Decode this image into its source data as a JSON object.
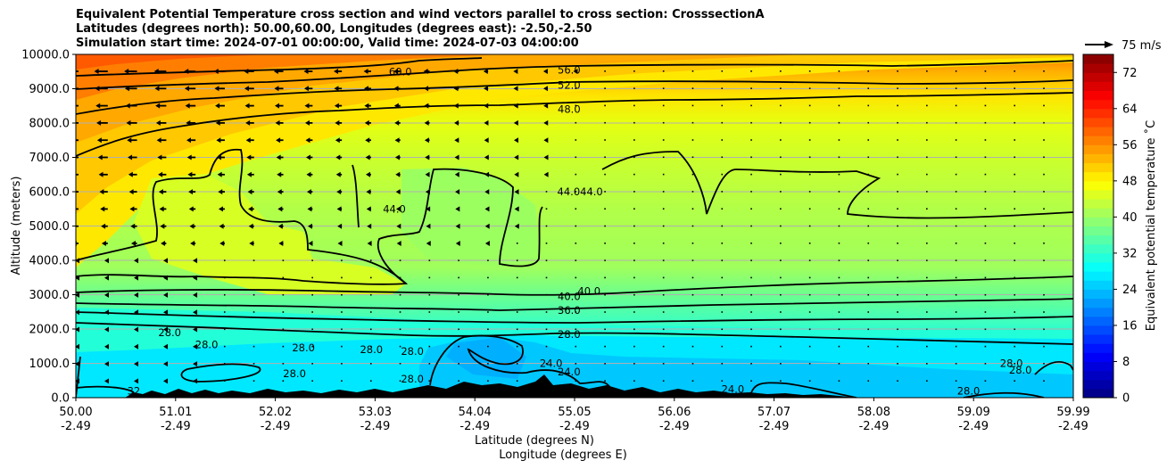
{
  "figure": {
    "title_lines": [
      "Equivalent Potential Temperature cross section and wind vectors parallel to cross section: CrosssectionA",
      "Latitudes (degrees north): 50.00,60.00, Longitudes (degrees east): -2.50,-2.50",
      "Simulation start time: 2024-07-01 00:00:00, Valid time: 2024-07-03 04:00:00"
    ],
    "quiver_key_label": "75 m/s"
  },
  "chart_data": {
    "type": "heatmap",
    "subtype": "filled-contour cross section with contour lines and wind vectors",
    "ylabel": "Altitude (meters)",
    "xlabel_lines": [
      "Latitude (degrees N)",
      "Longitude (degrees E)"
    ],
    "x_tick_labels": [
      [
        "50.00",
        "-2.49"
      ],
      [
        "51.01",
        "-2.49"
      ],
      [
        "52.02",
        "-2.49"
      ],
      [
        "53.03",
        "-2.49"
      ],
      [
        "54.04",
        "-2.49"
      ],
      [
        "55.05",
        "-2.49"
      ],
      [
        "56.06",
        "-2.49"
      ],
      [
        "57.07",
        "-2.49"
      ],
      [
        "58.08",
        "-2.49"
      ],
      [
        "59.09",
        "-2.49"
      ],
      [
        "59.99",
        "-2.49"
      ]
    ],
    "y_ticks": [
      "0.0",
      "1000.0",
      "2000.0",
      "3000.0",
      "4000.0",
      "5000.0",
      "6000.0",
      "7000.0",
      "8000.0",
      "9000.0",
      "10000.0"
    ],
    "xlim": [
      50.0,
      59.99
    ],
    "ylim": [
      0,
      10000
    ],
    "grid": "horizontal",
    "colorbar": {
      "label": "Equivalent potential temperature ˚C",
      "ticks": [
        "0",
        "8",
        "16",
        "24",
        "32",
        "40",
        "48",
        "56",
        "64",
        "72"
      ],
      "range": [
        0,
        76
      ],
      "colormap": "jet"
    },
    "contour_levels": [
      24,
      28,
      32,
      36,
      40,
      44,
      48,
      52,
      56,
      60
    ],
    "contour_labels": [
      {
        "text": "60.0",
        "lat": 53.25,
        "alt": 9500
      },
      {
        "text": "56.0",
        "lat": 54.94,
        "alt": 9550
      },
      {
        "text": "52.0",
        "lat": 54.94,
        "alt": 9100
      },
      {
        "text": "48.0",
        "lat": 54.94,
        "alt": 8400
      },
      {
        "text": "44.0",
        "lat": 53.19,
        "alt": 5500
      },
      {
        "text": "44.044.0",
        "lat": 55.05,
        "alt": 6000
      },
      {
        "text": "40.0",
        "lat": 54.94,
        "alt": 2950
      },
      {
        "text": "40.0",
        "lat": 55.14,
        "alt": 3100
      },
      {
        "text": "36.0",
        "lat": 54.94,
        "alt": 2550
      },
      {
        "text": "28.0",
        "lat": 54.94,
        "alt": 1850
      },
      {
        "text": "28.0",
        "lat": 50.94,
        "alt": 1900
      },
      {
        "text": "28.0",
        "lat": 51.31,
        "alt": 1550
      },
      {
        "text": "28.0",
        "lat": 52.28,
        "alt": 1450
      },
      {
        "text": "28.0",
        "lat": 52.96,
        "alt": 1400
      },
      {
        "text": "28.0",
        "lat": 52.19,
        "alt": 700
      },
      {
        "text": "28.0",
        "lat": 53.37,
        "alt": 1350
      },
      {
        "text": "28.0",
        "lat": 53.37,
        "alt": 550
      },
      {
        "text": "24.0",
        "lat": 54.76,
        "alt": 1000
      },
      {
        "text": "24.0",
        "lat": 54.94,
        "alt": 750
      },
      {
        "text": "24.0",
        "lat": 56.58,
        "alt": 250
      },
      {
        "text": "28.0",
        "lat": 59.37,
        "alt": 1000
      },
      {
        "text": "28.0",
        "lat": 59.46,
        "alt": 800
      },
      {
        "text": "28.0",
        "lat": 58.94,
        "alt": 200
      },
      {
        "text": "32",
        "lat": 50.58,
        "alt": 200
      }
    ],
    "wind_vectors_note": "westward-pointing arrows (toward lower latitude) strongest above 5000 m in the southern half"
  }
}
